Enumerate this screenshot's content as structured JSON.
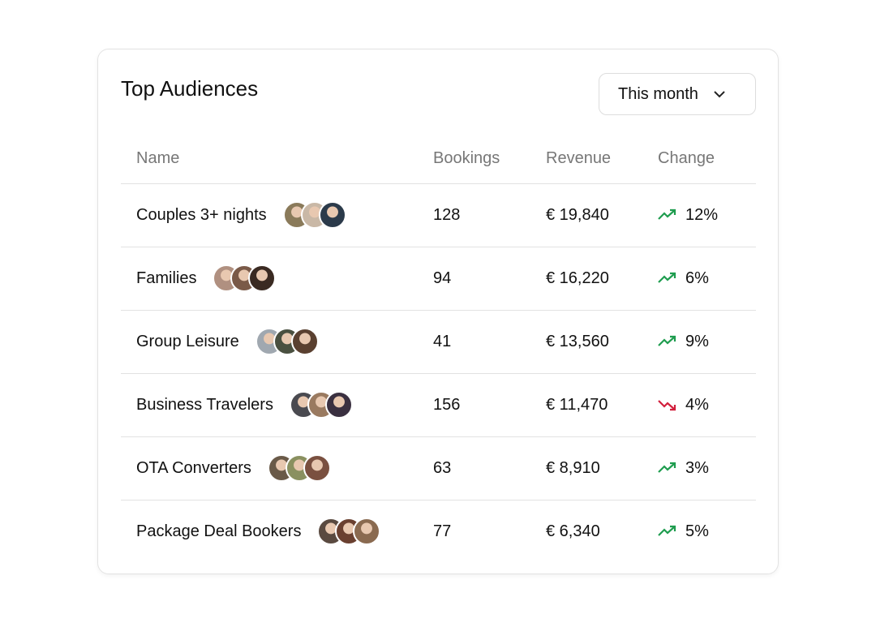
{
  "header": {
    "title": "Top Audiences",
    "period": "This month"
  },
  "table": {
    "columns": [
      "Name",
      "Bookings",
      "Revenue",
      "Change"
    ],
    "rows": [
      {
        "name": "Couples 3+ nights",
        "bookings": "128",
        "revenue": "€ 19,840",
        "change": "12%",
        "trend": "up"
      },
      {
        "name": "Families",
        "bookings": "94",
        "revenue": "€ 16,220",
        "change": "6%",
        "trend": "up"
      },
      {
        "name": "Group Leisure",
        "bookings": "41",
        "revenue": "€ 13,560",
        "change": "9%",
        "trend": "up"
      },
      {
        "name": "Business Travelers",
        "bookings": "156",
        "revenue": "€ 11,470",
        "change": "4%",
        "trend": "down"
      },
      {
        "name": "OTA Converters",
        "bookings": "63",
        "revenue": "€ 8,910",
        "change": "3%",
        "trend": "up"
      },
      {
        "name": "Package Deal Bookers",
        "bookings": "77",
        "revenue": "€ 6,340",
        "change": "5%",
        "trend": "up"
      }
    ]
  }
}
